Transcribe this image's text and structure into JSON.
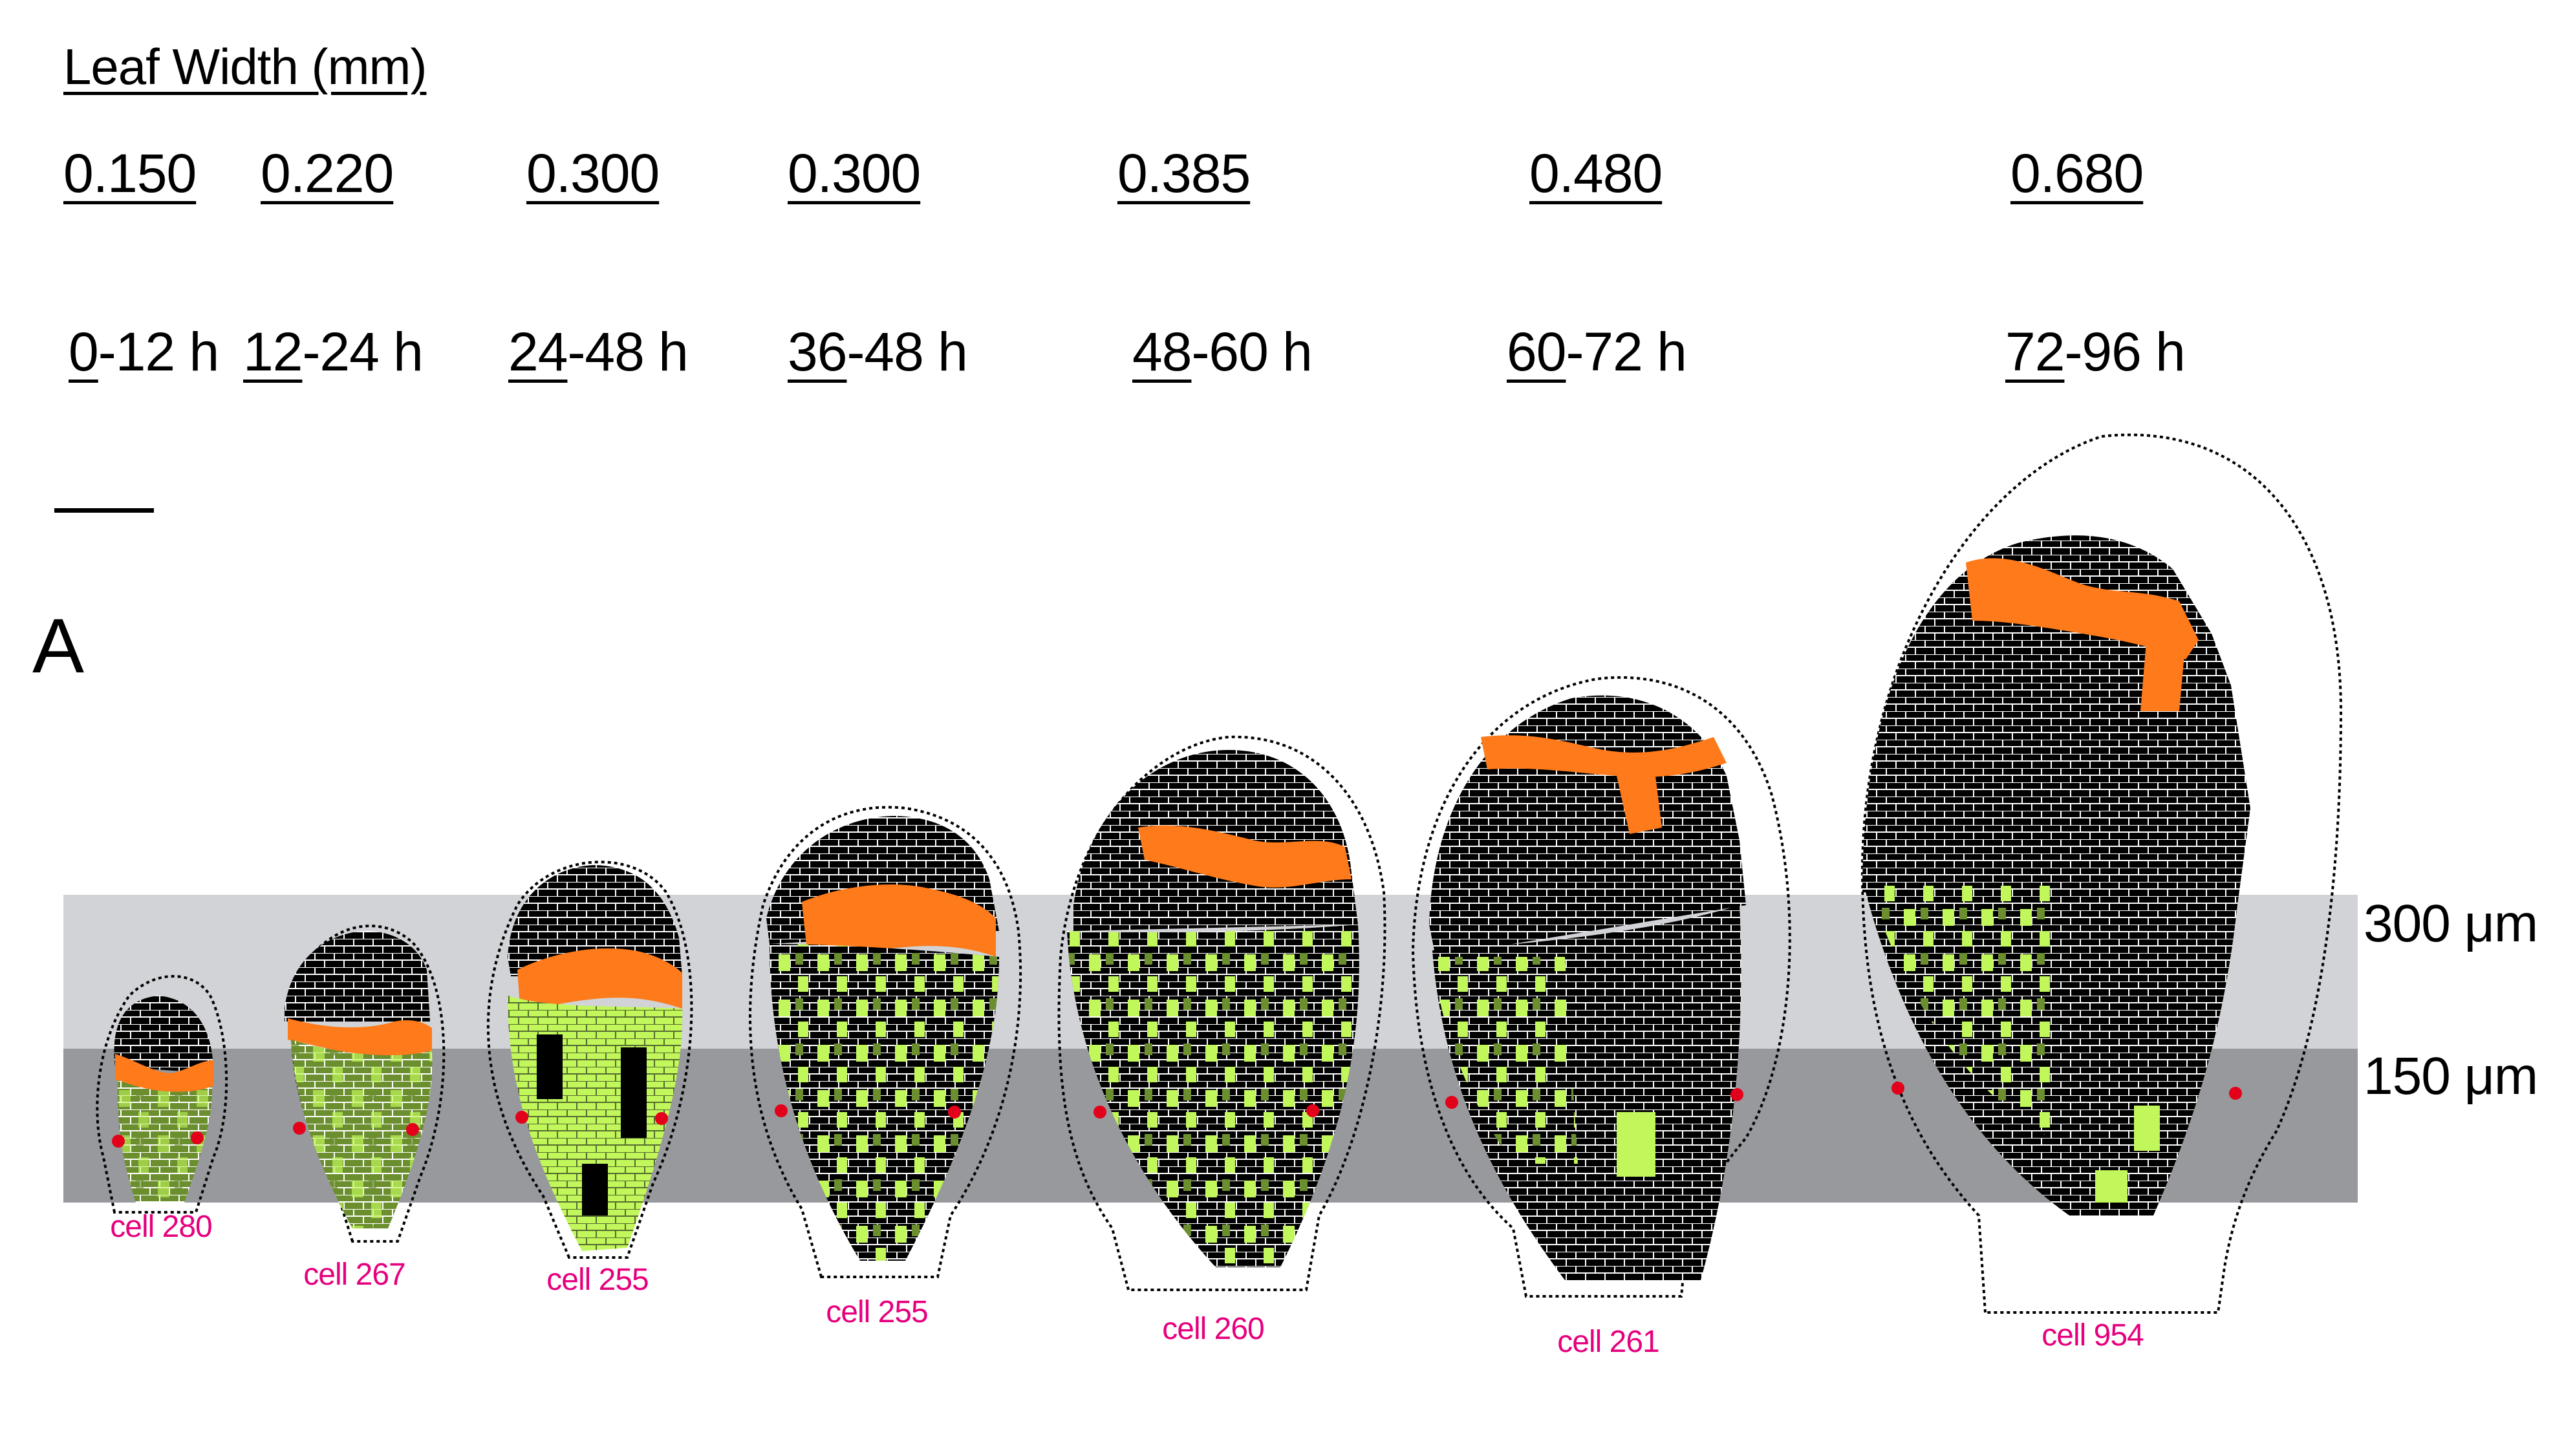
{
  "header": {
    "title": "Leaf Width (mm)"
  },
  "panel_letter": "A",
  "stages": [
    {
      "width": "0.150",
      "time_start": "0",
      "time_rest": "-12 h",
      "cell_label": "cell 280"
    },
    {
      "width": "0.220",
      "time_start": "12",
      "time_rest": "-24 h",
      "cell_label": "cell 267"
    },
    {
      "width": "0.300",
      "time_start": "24",
      "time_rest": "-48 h",
      "cell_label": "cell 255"
    },
    {
      "width": "0.300",
      "time_start": "36",
      "time_rest": "-48 h",
      "cell_label": "cell 255"
    },
    {
      "width": "0.385",
      "time_start": "48",
      "time_rest": "-60 h",
      "cell_label": "cell 260"
    },
    {
      "width": "0.480",
      "time_start": "60",
      "time_rest": "-72 h",
      "cell_label": "cell 261"
    },
    {
      "width": "0.680",
      "time_start": "72",
      "time_rest": "-96 h",
      "cell_label": "cell 954"
    }
  ],
  "bands": [
    {
      "label": "300 μm",
      "color": "#d1d3d6"
    },
    {
      "label": "150 μm",
      "color": "#98999c"
    }
  ],
  "colors": {
    "cell_fill": "#000000",
    "cell_wall": "#ffffff",
    "orange_cells": "#ff7a1a",
    "light_green_cells": "#c2f75c",
    "dark_green_cells": "#6b8e2f",
    "marker_dots": "#e3001b",
    "label_text": "#e6007e"
  }
}
